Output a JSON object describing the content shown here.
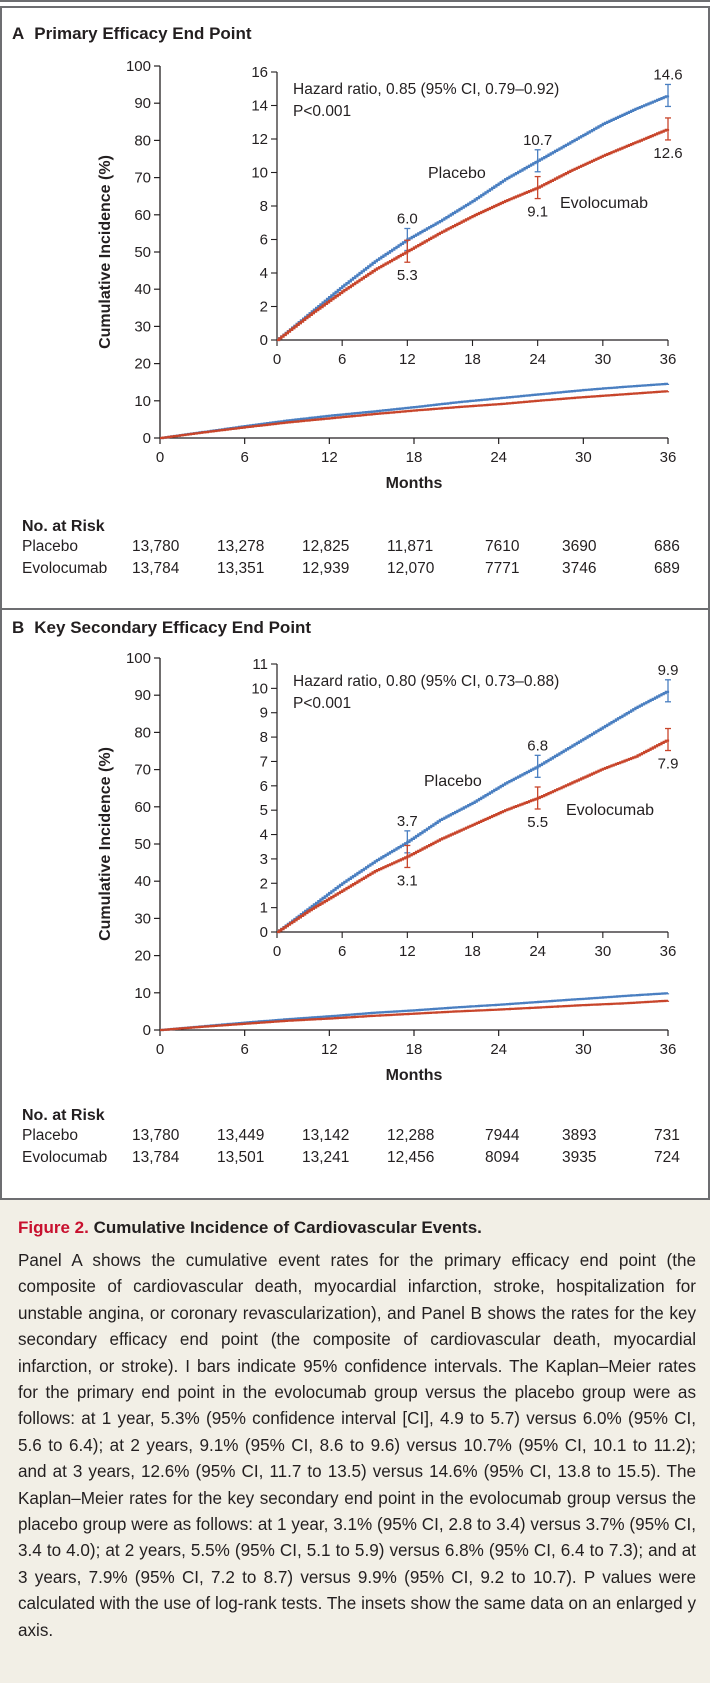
{
  "colors": {
    "placebo": "#4a7fc1",
    "evolocumab": "#c8452b",
    "axis": "#231f20"
  },
  "panels": [
    {
      "letter": "A",
      "title": "Primary Efficacy End Point",
      "ylabel": "Cumulative Incidence (%)",
      "xlabel": "Months",
      "hazard": "Hazard ratio, 0.85 (95% CI, 0.79–0.92)",
      "p": "P<0.001",
      "risk": {
        "header": "No. at Risk",
        "rows": [
          {
            "label": "Placebo",
            "values": [
              "13,780",
              "13,278",
              "12,825",
              "11,871",
              "7610",
              "3690",
              "686"
            ]
          },
          {
            "label": "Evolocumab",
            "values": [
              "13,784",
              "13,351",
              "12,939",
              "12,070",
              "7771",
              "3746",
              "689"
            ]
          }
        ]
      }
    },
    {
      "letter": "B",
      "title": "Key Secondary Efficacy End Point",
      "ylabel": "Cumulative Incidence (%)",
      "xlabel": "Months",
      "hazard": "Hazard ratio, 0.80 (95% CI, 0.73–0.88)",
      "p": "P<0.001",
      "risk": {
        "header": "No. at Risk",
        "rows": [
          {
            "label": "Placebo",
            "values": [
              "13,780",
              "13,449",
              "13,142",
              "12,288",
              "7944",
              "3893",
              "731"
            ]
          },
          {
            "label": "Evolocumab",
            "values": [
              "13,784",
              "13,501",
              "13,241",
              "12,456",
              "8094",
              "3935",
              "724"
            ]
          }
        ]
      }
    }
  ],
  "chart_data": [
    {
      "type": "line",
      "title": "Primary Efficacy End Point",
      "xlabel": "Months",
      "ylabel": "Cumulative Incidence (%)",
      "xlim": [
        0,
        36
      ],
      "ylim": [
        0,
        100
      ],
      "xticks": [
        0,
        6,
        12,
        18,
        24,
        30,
        36
      ],
      "yticks": [
        0,
        10,
        20,
        30,
        40,
        50,
        60,
        70,
        80,
        90,
        100
      ],
      "inset": {
        "xlim": [
          0,
          36
        ],
        "ylim": [
          0,
          16
        ],
        "yticks": [
          0,
          2,
          4,
          6,
          8,
          10,
          12,
          14,
          16
        ]
      },
      "x": [
        0,
        3,
        6,
        9,
        12,
        15,
        18,
        21,
        24,
        27,
        30,
        33,
        36
      ],
      "series": [
        {
          "name": "Placebo",
          "values": [
            0,
            1.6,
            3.2,
            4.7,
            6.0,
            7.1,
            8.3,
            9.6,
            10.7,
            11.8,
            12.9,
            13.8,
            14.6
          ],
          "labels": {
            "12": "6.0",
            "24": "10.7",
            "36": "14.6"
          }
        },
        {
          "name": "Evolocumab",
          "values": [
            0,
            1.5,
            2.9,
            4.2,
            5.3,
            6.4,
            7.4,
            8.3,
            9.1,
            10.1,
            11.0,
            11.8,
            12.6
          ],
          "labels": {
            "12": "5.3",
            "24": "9.1",
            "36": "12.6"
          }
        }
      ]
    },
    {
      "type": "line",
      "title": "Key Secondary Efficacy End Point",
      "xlabel": "Months",
      "ylabel": "Cumulative Incidence (%)",
      "xlim": [
        0,
        36
      ],
      "ylim": [
        0,
        100
      ],
      "xticks": [
        0,
        6,
        12,
        18,
        24,
        30,
        36
      ],
      "yticks": [
        0,
        10,
        20,
        30,
        40,
        50,
        60,
        70,
        80,
        90,
        100
      ],
      "inset": {
        "xlim": [
          0,
          36
        ],
        "ylim": [
          0,
          11
        ],
        "yticks": [
          0,
          1,
          2,
          3,
          4,
          5,
          6,
          7,
          8,
          9,
          10,
          11
        ]
      },
      "x": [
        0,
        3,
        6,
        9,
        12,
        15,
        18,
        21,
        24,
        27,
        30,
        33,
        36
      ],
      "series": [
        {
          "name": "Placebo",
          "values": [
            0,
            1.0,
            2.0,
            2.9,
            3.7,
            4.6,
            5.3,
            6.1,
            6.8,
            7.6,
            8.4,
            9.2,
            9.9
          ],
          "labels": {
            "12": "3.7",
            "24": "6.8",
            "36": "9.9"
          }
        },
        {
          "name": "Evolocumab",
          "values": [
            0,
            0.9,
            1.7,
            2.5,
            3.1,
            3.8,
            4.4,
            5.0,
            5.5,
            6.1,
            6.7,
            7.2,
            7.9
          ],
          "labels": {
            "12": "3.1",
            "24": "5.5",
            "36": "7.9"
          }
        }
      ]
    }
  ],
  "caption": {
    "figure_label": "Figure 2.",
    "title": "Cumulative Incidence of Cardiovascular Events.",
    "body": "Panel A shows the cumulative event rates for the primary efficacy end point (the composite of cardiovascular death, myocardial infarction, stroke, hospitalization for unstable angina, or coronary revascularization), and Panel B shows the rates for the key secondary efficacy end point (the composite of cardiovascular death, myocardial infarction, or stroke). I bars indicate 95% confidence intervals. The Kaplan–Meier rates for the primary end point in the evolocumab group versus the placebo group were as follows: at 1 year, 5.3% (95% confidence interval [CI], 4.9 to 5.7) versus 6.0% (95% CI, 5.6 to 6.4); at 2 years, 9.1% (95% CI, 8.6 to 9.6) versus 10.7% (95% CI, 10.1 to 11.2); and at 3 years, 12.6% (95% CI, 11.7 to 13.5) versus 14.6% (95% CI, 13.8 to 15.5). The Kaplan–Meier rates for the key secondary end point in the evolocumab group versus the placebo group were as follows: at 1 year, 3.1% (95% CI, 2.8 to 3.4) versus 3.7% (95% CI, 3.4 to 4.0); at 2 years, 5.5% (95% CI, 5.1 to 5.9) versus 6.8% (95% CI, 6.4 to 7.3); and at 3 years, 7.9% (95% CI, 7.2 to 8.7) versus 9.9% (95% CI, 9.2 to 10.7). P values were calculated with the use of log-rank tests. The insets show the same data on an enlarged y axis."
  }
}
